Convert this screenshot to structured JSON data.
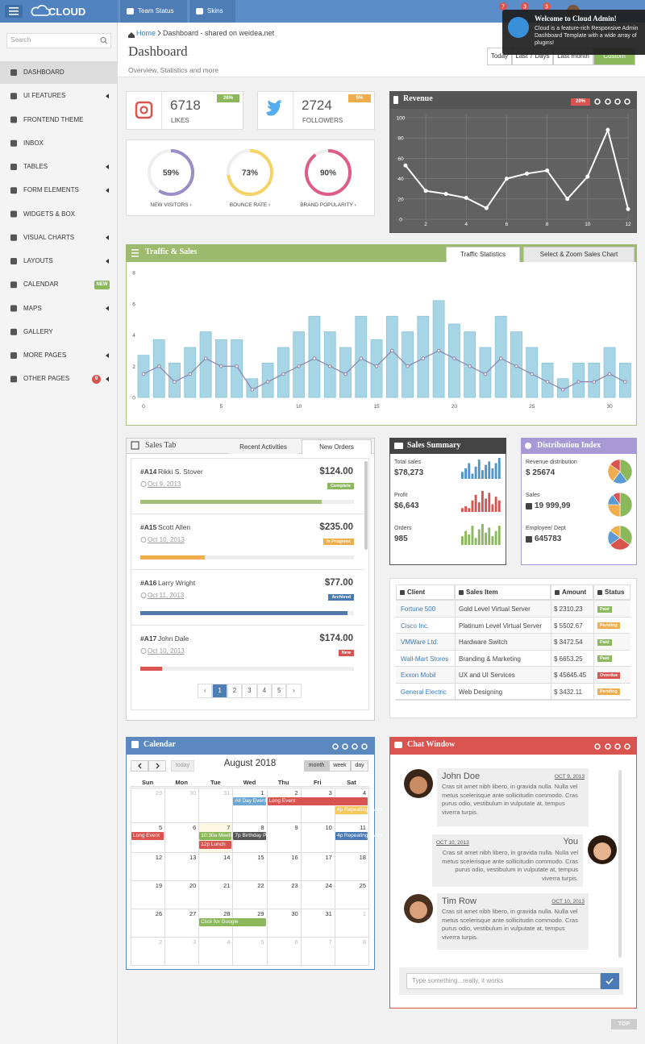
{
  "navbar": {
    "brand": "CLOUD",
    "menu": [
      "Team Status",
      "Skins"
    ],
    "badges": [
      7,
      3,
      3
    ]
  },
  "notification": {
    "title": "Welcome to Cloud Admin!",
    "text": "Cloud is a feature-rich Responsive Admin Dashboard Template with a wide array of plugins!"
  },
  "sidebar": {
    "search": "Search",
    "items": [
      {
        "label": "DASHBOARD",
        "active": true
      },
      {
        "label": "UI FEATURES",
        "submenu": true
      },
      {
        "label": "FRONTEND THEME"
      },
      {
        "label": "INBOX"
      },
      {
        "label": "TABLES",
        "submenu": true
      },
      {
        "label": "FORM ELEMENTS",
        "submenu": true
      },
      {
        "label": "WIDGETS & BOX"
      },
      {
        "label": "VISUAL CHARTS",
        "submenu": true
      },
      {
        "label": "LAYOUTS",
        "submenu": true
      },
      {
        "label": "CALENDAR",
        "badge": "NEW",
        "badge_color": "#8cb85c"
      },
      {
        "label": "MAPS",
        "submenu": true
      },
      {
        "label": "GALLERY"
      },
      {
        "label": "MORE PAGES",
        "submenu": true
      },
      {
        "label": "OTHER PAGES",
        "submenu": true,
        "badge": 9,
        "badge_color": "#d9534f"
      }
    ]
  },
  "header": {
    "breadcrumb": {
      "home": "Home",
      "current": "Dashboard - shared on weidea.net"
    },
    "title": "Dashboard",
    "subtitle": "Overview, Statistics and more",
    "ranges": [
      "Today",
      "Last 7 Days",
      "Last month",
      "Custom"
    ],
    "highlighted_range": 3
  },
  "social": [
    {
      "value": 6718,
      "label": "LIKES",
      "change": "26%",
      "badge_color": "#8cb85c"
    },
    {
      "value": 2724,
      "label": "FOLLOWERS",
      "change": "5%",
      "badge_color": "#f0ad4e"
    }
  ],
  "gauges": [
    {
      "value": 59,
      "value_label": "59%",
      "label": "NEW VISITORS ›",
      "color": "#9b8dc8"
    },
    {
      "value": 73,
      "value_label": "73%",
      "label": "BOUNCE RATE ›",
      "color": "#f5d466"
    },
    {
      "value": 90,
      "value_label": "90%",
      "label": "BRAND POPULARITY ›",
      "color": "#de5b8a"
    }
  ],
  "revenue": {
    "title": "Revenue",
    "badge": "20%",
    "color": "#ffffff",
    "x": [
      1,
      2,
      3,
      4,
      5,
      6,
      7,
      8,
      9,
      10,
      11,
      12
    ],
    "values": [
      53,
      28,
      25,
      21,
      11,
      40,
      45,
      48,
      20,
      42,
      88,
      10
    ],
    "xlim": [
      0.5,
      12
    ],
    "ylim": [
      0,
      100
    ],
    "xticks": [
      2,
      4,
      6,
      8,
      10,
      12
    ],
    "yticks": [
      0,
      20,
      40,
      60,
      80,
      100
    ],
    "grid": true
  },
  "traffic": {
    "title": "Traffic & Sales",
    "tabs": [
      "Traffic Statistics",
      "Select & Zoom Sales Chart"
    ],
    "x": [
      0,
      1,
      2,
      3,
      4,
      5,
      6,
      7,
      8,
      9,
      10,
      11,
      12,
      13,
      14,
      15,
      16,
      17,
      18,
      19,
      20,
      21,
      22,
      23,
      24,
      25,
      26,
      27,
      28,
      29,
      30,
      31
    ],
    "bars": {
      "color": "#a6d5e6",
      "values": [
        2.7,
        3.7,
        2.2,
        3.2,
        4.2,
        3.7,
        3.7,
        1.2,
        2.2,
        3.2,
        4.2,
        5.2,
        4.2,
        3.2,
        5.2,
        3.7,
        5.2,
        4.2,
        5.2,
        6.2,
        4.7,
        4.2,
        3.2,
        5.2,
        4.2,
        3.2,
        2.2,
        1.2,
        2.2,
        2.2,
        3.2,
        2.2
      ]
    },
    "line": {
      "color": "#8f82a8",
      "values": [
        1.5,
        2,
        1,
        1.5,
        2.5,
        2,
        2,
        0.5,
        1,
        1.5,
        2,
        2.5,
        2,
        1.5,
        2.5,
        2,
        3,
        2,
        2.5,
        3,
        2.5,
        2,
        1.5,
        2.5,
        2,
        1.5,
        1,
        0.5,
        1,
        1,
        1.5,
        1
      ]
    },
    "xlim": [
      -1,
      31.5
    ],
    "ylim": [
      0,
      8
    ],
    "xticks": [
      0,
      5,
      10,
      15,
      20,
      25,
      30
    ],
    "yticks": [
      0,
      2,
      4,
      6,
      8
    ]
  },
  "sales_tab": {
    "title": "Sales Tab",
    "tabs": [
      "Recent Activities",
      "New Orders"
    ],
    "active_tab": 1,
    "orders": [
      {
        "id": "#A14",
        "name": "Rikki S. Stover",
        "date": "Oct 9, 2013",
        "amount": "$124.00",
        "status": "Complete",
        "status_color": "#8cb85c",
        "progress": 85,
        "progress_color": "#a3bf78"
      },
      {
        "id": "#A15",
        "name": "Scott Allen",
        "date": "Oct 10, 2013",
        "amount": "$235.00",
        "status": "In Progress",
        "status_color": "#f0ad4e",
        "progress": 30,
        "progress_color": "#f0ad4e"
      },
      {
        "id": "#A16",
        "name": "Larry Wright",
        "date": "Oct 11, 2013",
        "amount": "$77.00",
        "status": "Archived",
        "status_color": "#4a7ab5",
        "progress": 97,
        "progress_color": "#5378a8"
      },
      {
        "id": "#A17",
        "name": "John Dale",
        "date": "Oct 10, 2013",
        "amount": "$174.00",
        "status": "New",
        "status_color": "#d9534f",
        "progress": 10,
        "progress_color": "#d9534f"
      }
    ],
    "pages": [
      "‹",
      1,
      2,
      3,
      4,
      5,
      "›"
    ],
    "active_page": 1
  },
  "sales_summary": {
    "title": "Sales Summary",
    "items": [
      {
        "label": "Total sales",
        "value": "$78,273",
        "color": "#4d95c9",
        "bars": [
          4,
          6,
          9,
          3,
          7,
          11,
          5,
          8,
          10,
          6,
          9,
          12
        ]
      },
      {
        "label": "Profit",
        "value": "$6,643",
        "color": "#d9534f",
        "bars": [
          2,
          3,
          2,
          6,
          9,
          5,
          11,
          7,
          10,
          4,
          8,
          6
        ]
      },
      {
        "label": "Orders",
        "value": 985,
        "color": "#8cb85c",
        "bars": [
          5,
          8,
          6,
          11,
          4,
          9,
          12,
          7,
          10,
          5,
          8,
          11
        ]
      }
    ]
  },
  "distribution": {
    "title": "Distribution Index",
    "items": [
      {
        "label": "Revenue distribution",
        "value": "$ 25674",
        "slices": [
          {
            "value": 40,
            "color": "#8cb85c"
          },
          {
            "value": 20,
            "color": "#5b9bd5"
          },
          {
            "value": 25,
            "color": "#f0ad4e"
          },
          {
            "value": 15,
            "color": "#d9534f"
          }
        ]
      },
      {
        "label": "Sales",
        "value": "19 999,99",
        "slices": [
          {
            "value": 50,
            "color": "#8cb85c"
          },
          {
            "value": 25,
            "color": "#f0ad4e"
          },
          {
            "value": 15,
            "color": "#5b9bd5"
          },
          {
            "value": 10,
            "color": "#d9534f"
          }
        ]
      },
      {
        "label": "Employee/ Dept",
        "value": 645783,
        "slices": [
          {
            "value": 35,
            "color": "#8cb85c"
          },
          {
            "value": 30,
            "color": "#d9534f"
          },
          {
            "value": 20,
            "color": "#5b9bd5"
          },
          {
            "value": 15,
            "color": "#f0ad4e"
          }
        ]
      }
    ]
  },
  "table": {
    "headers": [
      "Client",
      "Sales Item",
      "Amount",
      "Status"
    ],
    "rows": [
      {
        "client": "Fortune 500",
        "item": "Gold Level Virtual Server",
        "amount": "$ 2310.23",
        "status": "Paid",
        "status_color": "#8cb85c"
      },
      {
        "client": "Cisco Inc.",
        "item": "Platinum Level Virtual Server",
        "amount": "$ 5502.67",
        "status": "Pending",
        "status_color": "#f0ad4e"
      },
      {
        "client": "VMWare Ltd.",
        "item": "Hardware Switch",
        "amount": "$ 3472.54",
        "status": "Paid",
        "status_color": "#8cb85c"
      },
      {
        "client": "Wall-Mart Stores",
        "item": "Branding & Marketing",
        "amount": "$ 6653.25",
        "status": "Paid",
        "status_color": "#8cb85c"
      },
      {
        "client": "Exxon Mobil",
        "item": "UX and UI Services",
        "amount": "$ 45645.45",
        "status": "Overdue",
        "status_color": "#d9534f"
      },
      {
        "client": "General Electric",
        "item": "Web Designing",
        "amount": "$ 3432.11",
        "status": "Pending",
        "status_color": "#f0ad4e"
      }
    ]
  },
  "calendar": {
    "title": "Calendar",
    "month": "August 2018",
    "today_button": "today",
    "views": [
      "month",
      "week",
      "day"
    ],
    "active_view": 0,
    "today": 7,
    "weekdays": [
      "Sun",
      "Mon",
      "Tue",
      "Wed",
      "Thu",
      "Fri",
      "Sat"
    ],
    "weeks": [
      [
        29,
        30,
        31,
        1,
        2,
        3,
        4
      ],
      [
        5,
        6,
        7,
        8,
        9,
        10,
        11
      ],
      [
        12,
        13,
        14,
        15,
        16,
        17,
        18
      ],
      [
        19,
        20,
        21,
        22,
        23,
        24,
        25
      ],
      [
        26,
        27,
        28,
        29,
        30,
        31,
        1
      ],
      [
        2,
        3,
        4,
        5,
        6,
        7,
        8
      ]
    ],
    "events": [
      {
        "label": "All Day Event",
        "date": 1,
        "days": 1,
        "color": "#6ba6d4"
      },
      {
        "label": "Long Event",
        "date": 2,
        "days": 4,
        "color": "#d9534f"
      },
      {
        "label": "4p Repeating Event",
        "date": 4,
        "days": 1,
        "color": "#f5c85c"
      },
      {
        "label": "10:30a Meeting",
        "date": 7,
        "days": 1,
        "color": "#8cb85c"
      },
      {
        "label": "12p Lunch",
        "date": 7,
        "days": 1,
        "color": "#d9534f"
      },
      {
        "label": "7p Birthday Party",
        "date": 8,
        "days": 1,
        "color": "#555555"
      },
      {
        "label": "4p Repeating Event",
        "date": 11,
        "days": 1,
        "color": "#4a7ab5"
      },
      {
        "label": "Click for Google",
        "date": 28,
        "days": 2,
        "color": "#8cb85c"
      }
    ]
  },
  "chat": {
    "title": "Chat Window",
    "placeholder": "Type something...really, it works",
    "messages": [
      {
        "name": "John Doe",
        "date": "OCT 9, 2013",
        "side": "left",
        "text": "Cras sit amet nibh libero, in gravida nulla. Nulla vel metus scelerisque ante sollicitudin commodo. Cras purus odio, vestibulum in vulputate at, tempus viverra turpis."
      },
      {
        "name": "You",
        "date": "OCT 10, 2013",
        "side": "right",
        "text": "Cras sit amet nibh libero, in gravida nulla. Nulla vel metus scelerisque ante sollicitudin commodo. Cras purus odio, vestibulum in vulputate at, tempus viverra turpis."
      },
      {
        "name": "Tim Row",
        "date": "OCT 10, 2013",
        "side": "left",
        "text": "Cras sit amet nibh libero, in gravida nulla. Nulla vel metus scelerisque ante sollicitudin commodo. Cras purus odio, vestibulum in vulputate at, tempus viverra turpis."
      }
    ]
  },
  "top": "TOP"
}
